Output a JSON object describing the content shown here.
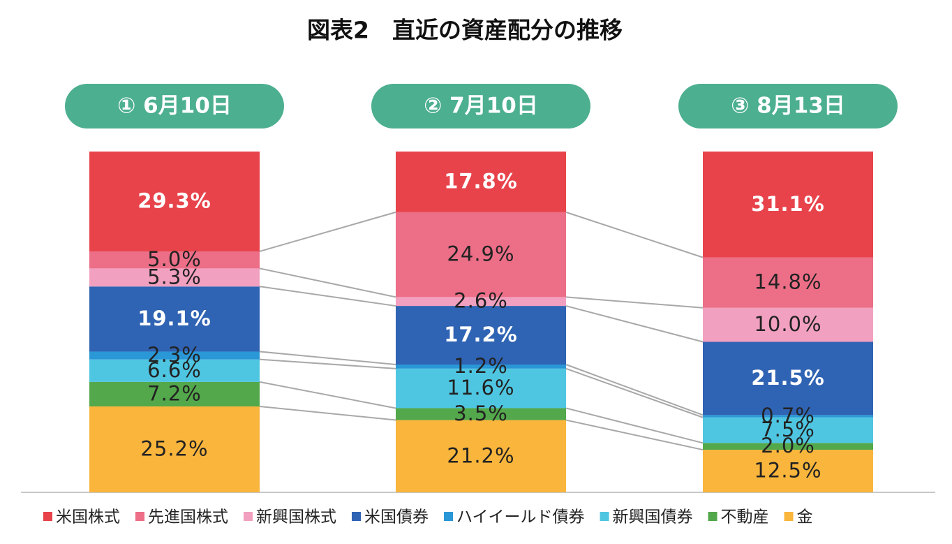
{
  "chart_data": {
    "type": "stacked-bar-100",
    "title": "図表2　直近の資産配分の推移",
    "categories": [
      "① 6月10日",
      "② 7月10日",
      "③ 8月13日"
    ],
    "series": [
      {
        "name": "米国株式",
        "color": "#e8434b",
        "values": [
          29.3,
          17.8,
          31.1
        ],
        "value_labels": [
          "29.3%",
          "17.8%",
          "31.1%"
        ]
      },
      {
        "name": "先進国株式",
        "color": "#ec6e87",
        "values": [
          5.0,
          24.9,
          14.8
        ],
        "value_labels": [
          "5.0%",
          "24.9%",
          "14.8%"
        ]
      },
      {
        "name": "新興国株式",
        "color": "#f2a0c0",
        "values": [
          5.3,
          2.6,
          10.0
        ],
        "value_labels": [
          "5.3%",
          "2.6%",
          "10.0%"
        ]
      },
      {
        "name": "米国債券",
        "color": "#2f63b3",
        "values": [
          19.1,
          17.2,
          21.5
        ],
        "value_labels": [
          "19.1%",
          "17.2%",
          "21.5%"
        ]
      },
      {
        "name": "ハイイールド債券",
        "color": "#2a97d6",
        "values": [
          2.3,
          1.2,
          0.7
        ],
        "value_labels": [
          "2.3%",
          "1.2%",
          "0.7%"
        ]
      },
      {
        "name": "新興国債券",
        "color": "#4fc6e1",
        "values": [
          6.6,
          11.6,
          7.5
        ],
        "value_labels": [
          "6.6%",
          "11.6%",
          "7.5%"
        ]
      },
      {
        "name": "不動産",
        "color": "#53a84b",
        "values": [
          7.2,
          3.5,
          2.0
        ],
        "value_labels": [
          "7.2%",
          "3.5%",
          "2.0%"
        ]
      },
      {
        "name": "金",
        "color": "#f9b53c",
        "values": [
          25.2,
          21.2,
          12.5
        ],
        "value_labels": [
          "25.2%",
          "21.2%",
          "12.5%"
        ]
      }
    ]
  }
}
